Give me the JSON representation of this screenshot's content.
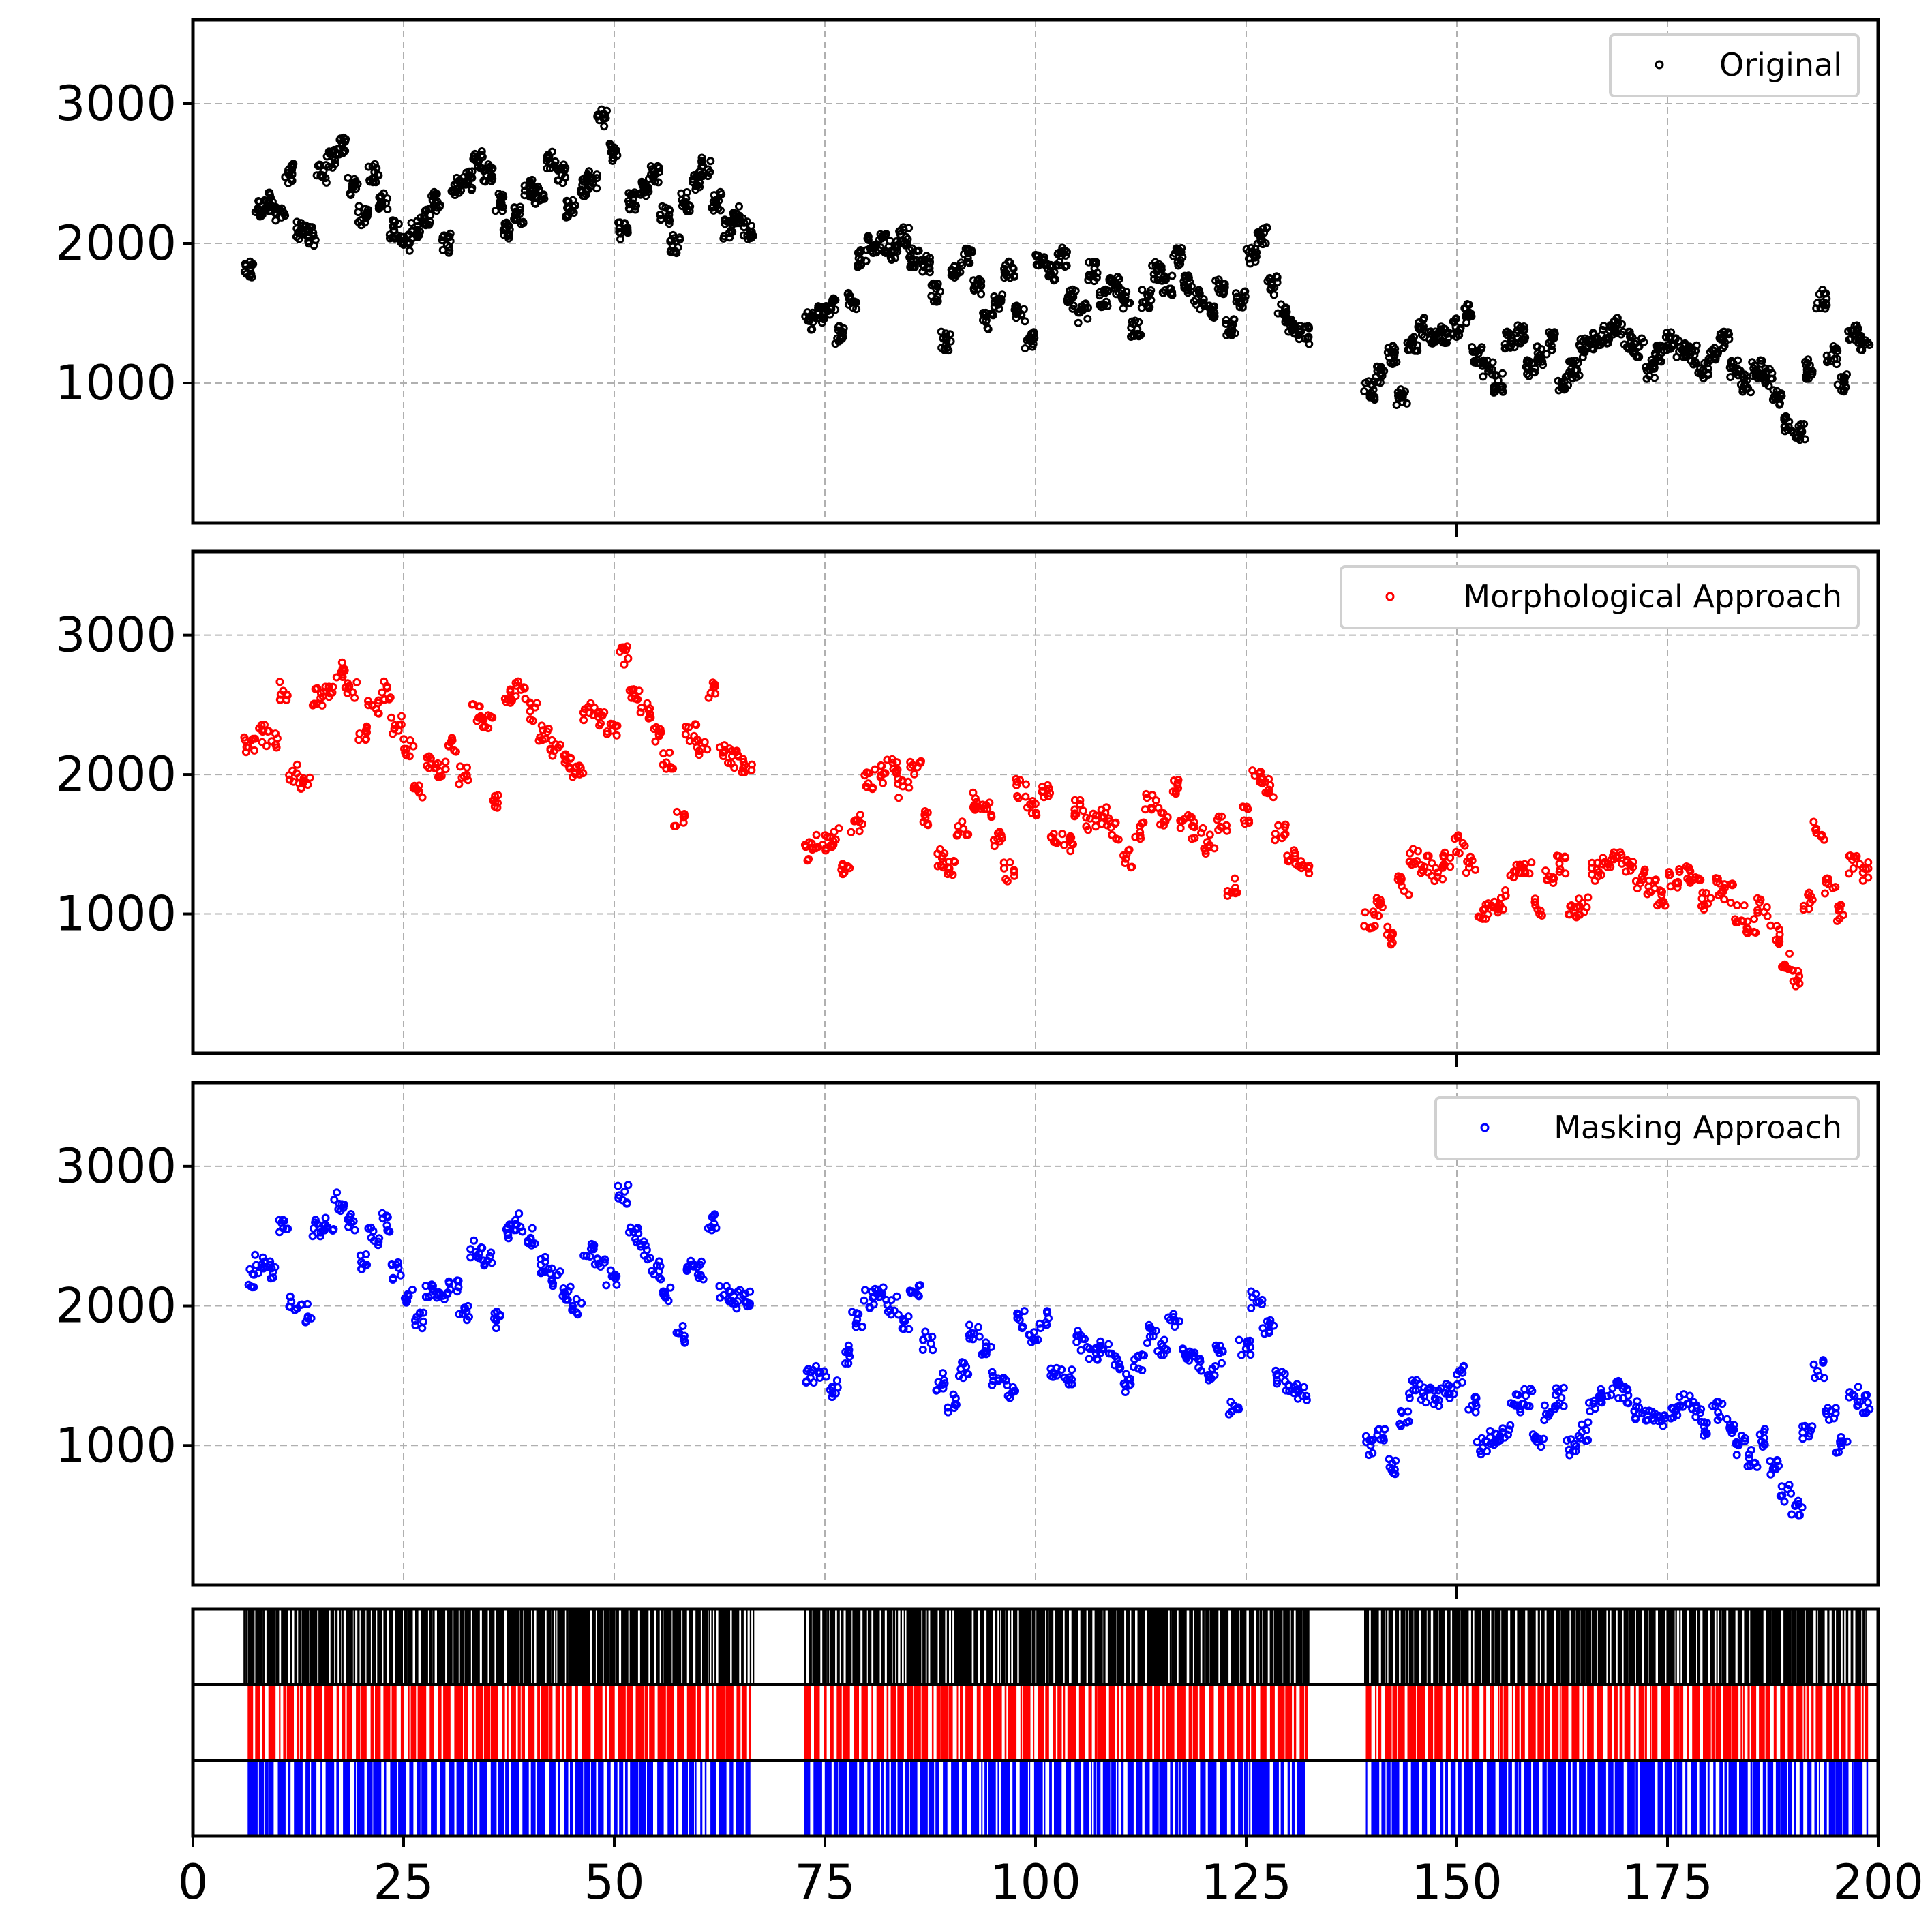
{
  "chart_data": [
    {
      "type": "scatter",
      "xlim": [
        0,
        200
      ],
      "ylim": [
        0,
        3600
      ],
      "yticks": [
        1000,
        2000,
        3000
      ],
      "ytick_labels": [
        "1000",
        "2000",
        "3000"
      ],
      "grid": true,
      "legend": {
        "position": "top-right",
        "entries": [
          "Original"
        ]
      },
      "series": [
        {
          "name": "Original",
          "color": "#000000",
          "segments": [
            {
              "x_start": 6,
              "x_end": 66.5,
              "level": [
                1800,
                2250,
                2300,
                2200,
                2500,
                2100,
                2050,
                2500,
                2600,
                2700,
                2400,
                2200,
                2500,
                2300,
                2100,
                2000,
                2100,
                2200,
                2300,
                2000,
                2400,
                2450,
                2600,
                2500,
                2300,
                2100,
                2200,
                2400,
                2350,
                2600,
                2500,
                2250,
                2400,
                2450,
                2900,
                2650,
                2100,
                2300,
                2400,
                2500,
                2200,
                2000,
                2300,
                2450,
                2550,
                2300,
                2100,
                2200,
                2100
              ]
            },
            {
              "x_start": 72.5,
              "x_end": 132.5,
              "level": [
                1450,
                1500,
                1550,
                1350,
                1600,
                1900,
                2000,
                2000,
                1950,
                2050,
                1900,
                1850,
                1650,
                1300,
                1800,
                1900,
                1700,
                1450,
                1600,
                1800,
                1500,
                1300,
                1900,
                1800,
                1900,
                1600,
                1500,
                1800,
                1600,
                1700,
                1600,
                1400,
                1600,
                1800,
                1700,
                1900,
                1700,
                1600,
                1500,
                1700,
                1400,
                1600,
                1900,
                2050,
                1700,
                1500,
                1400,
                1350
              ]
            },
            {
              "x_start": 139,
              "x_end": 199,
              "level": [
                950,
                1050,
                1200,
                900,
                1300,
                1400,
                1300,
                1350,
                1400,
                1500,
                1200,
                1100,
                1000,
                1300,
                1350,
                1100,
                1200,
                1300,
                1000,
                1100,
                1250,
                1300,
                1350,
                1400,
                1300,
                1250,
                1100,
                1200,
                1300,
                1250,
                1200,
                1100,
                1200,
                1300,
                1100,
                1000,
                1100,
                1050,
                900,
                700,
                650,
                1100,
                1600,
                1200,
                1000,
                1350,
                1300
              ]
            }
          ]
        }
      ]
    },
    {
      "type": "scatter",
      "xlim": [
        0,
        200
      ],
      "ylim": [
        0,
        3600
      ],
      "yticks": [
        1000,
        2000,
        3000
      ],
      "ytick_labels": [
        "1000",
        "2000",
        "3000"
      ],
      "grid": true,
      "legend": {
        "position": "top-right",
        "entries": [
          "Morphological Approach"
        ]
      },
      "series": [
        {
          "name": "Morphological Approach",
          "color": "#ff0000",
          "segments": [
            {
              "x_start": 6,
              "x_end": 66.5,
              "level": [
                2200,
                2300,
                2250,
                2600,
                2000,
                1950,
                2550,
                2600,
                2750,
                2600,
                2300,
                2500,
                2600,
                2350,
                2200,
                1900,
                2100,
                2050,
                2200,
                2000,
                2450,
                2400,
                1800,
                2550,
                2600,
                2450,
                2300,
                2200,
                2100,
                2000,
                2450,
                2400,
                2350,
                2850,
                2600,
                2450,
                2300,
                2100,
                1700,
                2300,
                2200,
                2600,
                2150,
                2100,
                2050
              ]
            },
            {
              "x_start": 72.5,
              "x_end": 132.5,
              "level": [
                1450,
                1500,
                1550,
                1350,
                1650,
                1950,
                2000,
                2050,
                1900,
                2050,
                1700,
                1400,
                1350,
                1600,
                1800,
                1750,
                1550,
                1300,
                1900,
                1750,
                1900,
                1550,
                1500,
                1750,
                1650,
                1700,
                1600,
                1400,
                1600,
                1800,
                1700,
                1900,
                1650,
                1600,
                1500,
                1650,
                1200,
                1700,
                2000,
                1900,
                1600,
                1400,
                1350
              ]
            },
            {
              "x_start": 139,
              "x_end": 199,
              "level": [
                950,
                1050,
                850,
                1200,
                1400,
                1350,
                1300,
                1400,
                1500,
                1350,
                1000,
                1050,
                1100,
                1300,
                1350,
                1050,
                1250,
                1350,
                1000,
                1050,
                1300,
                1350,
                1400,
                1350,
                1250,
                1200,
                1100,
                1250,
                1300,
                1250,
                1100,
                1200,
                1150,
                1000,
                900,
                1050,
                850,
                650,
                550,
                1100,
                1600,
                1200,
                1000,
                1350,
                1300
              ]
            }
          ]
        }
      ]
    },
    {
      "type": "scatter",
      "xlim": [
        0,
        200
      ],
      "ylim": [
        0,
        3600
      ],
      "yticks": [
        1000,
        2000,
        3000
      ],
      "ytick_labels": [
        "1000",
        "2000",
        "3000"
      ],
      "grid": true,
      "legend": {
        "position": "top-right",
        "entries": [
          "Masking Approach"
        ]
      },
      "series": [
        {
          "name": "Masking Approach",
          "color": "#0000ff",
          "segments": [
            {
              "x_start": 6,
              "x_end": 66.5,
              "level": [
                2200,
                2300,
                2250,
                2550,
                2000,
                1950,
                2550,
                2600,
                2750,
                2600,
                2300,
                2500,
                2600,
                2250,
                2050,
                1900,
                2100,
                2050,
                2150,
                1950,
                2400,
                2350,
                1900,
                2550,
                2600,
                2500,
                2300,
                2200,
                2100,
                2000,
                2400,
                2350,
                2200,
                2800,
                2500,
                2400,
                2250,
                2100,
                1800,
                2300,
                2250,
                2600,
                2100,
                2050,
                2050
              ]
            },
            {
              "x_start": 72.5,
              "x_end": 132.5,
              "level": [
                1500,
                1550,
                1400,
                1650,
                1900,
                2050,
                2100,
                2000,
                1900,
                2100,
                1750,
                1450,
                1300,
                1550,
                1800,
                1700,
                1500,
                1400,
                1900,
                1800,
                1900,
                1500,
                1500,
                1750,
                1650,
                1700,
                1600,
                1450,
                1600,
                1800,
                1700,
                1900,
                1650,
                1600,
                1500,
                1650,
                1250,
                1700,
                2050,
                1850,
                1500,
                1400,
                1350
              ]
            },
            {
              "x_start": 139,
              "x_end": 199,
              "level": [
                1000,
                1050,
                850,
                1200,
                1400,
                1350,
                1350,
                1400,
                1500,
                1300,
                1000,
                1050,
                1100,
                1300,
                1350,
                1050,
                1250,
                1350,
                1000,
                1100,
                1300,
                1350,
                1400,
                1350,
                1250,
                1200,
                1150,
                1250,
                1300,
                1250,
                1100,
                1250,
                1150,
                1000,
                900,
                1050,
                850,
                650,
                550,
                1100,
                1550,
                1200,
                1000,
                1350,
                1300
              ]
            }
          ]
        }
      ]
    },
    {
      "type": "event-raster",
      "xlim": [
        0,
        200
      ],
      "xticks": [
        0,
        25,
        50,
        75,
        100,
        125,
        150,
        175,
        200
      ],
      "xtick_labels": [
        "0",
        "25",
        "50",
        "75",
        "100",
        "125",
        "150",
        "175",
        "200"
      ],
      "rows": [
        {
          "color": "#000000",
          "intervals": [
            [
              6,
              66.5
            ],
            [
              72.5,
              132.5
            ],
            [
              139,
              199
            ]
          ]
        },
        {
          "color": "#ff0000",
          "intervals": [
            [
              6.5,
              66.2
            ],
            [
              72.5,
              132.3
            ],
            [
              139.2,
              198.8
            ]
          ]
        },
        {
          "color": "#0000ff",
          "intervals": [
            [
              6.5,
              66.2
            ],
            [
              72.5,
              132.3
            ],
            [
              139.2,
              198.8
            ]
          ]
        }
      ]
    }
  ]
}
